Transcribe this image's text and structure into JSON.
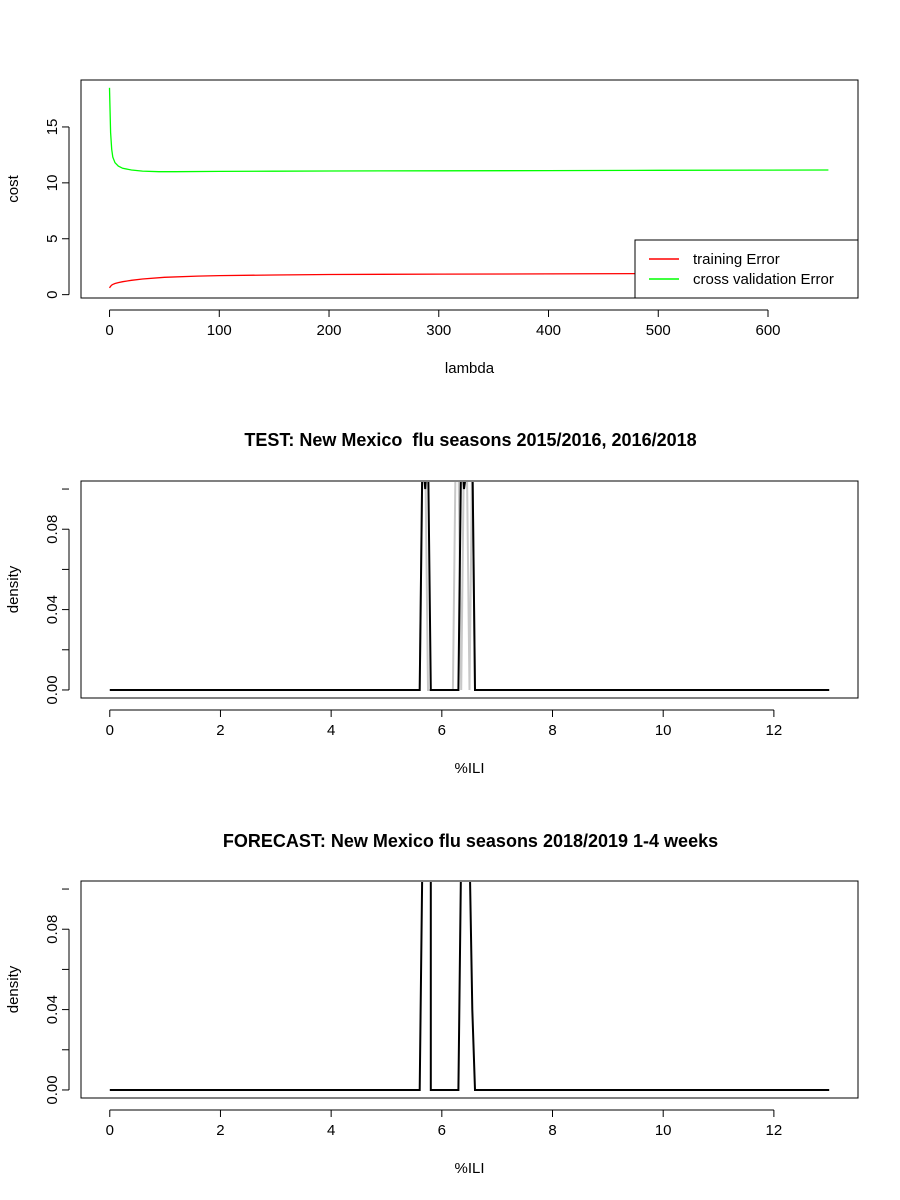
{
  "chart_data": [
    {
      "type": "line",
      "title": "",
      "xlabel": "lambda",
      "ylabel": "cost",
      "xlim": [
        -26,
        682
      ],
      "ylim": [
        -0.3,
        19.2
      ],
      "xticks": [
        0,
        100,
        200,
        300,
        400,
        500,
        600
      ],
      "yticks": [
        0,
        5,
        10,
        15
      ],
      "legend": {
        "placement": "bottom-right"
      },
      "series": [
        {
          "name": "training Error",
          "color": "#ff0000",
          "x": [
            0,
            1,
            2,
            3,
            5,
            8,
            12,
            20,
            30,
            50,
            80,
            100,
            150,
            200,
            300,
            400,
            500,
            600,
            655
          ],
          "y": [
            0.6,
            0.75,
            0.85,
            0.92,
            1.0,
            1.08,
            1.16,
            1.28,
            1.4,
            1.55,
            1.66,
            1.7,
            1.76,
            1.8,
            1.84,
            1.86,
            1.88,
            1.89,
            1.9
          ]
        },
        {
          "name": "cross validation Error",
          "color": "#00ff00",
          "x": [
            0,
            1,
            2,
            3,
            5,
            8,
            12,
            20,
            30,
            45,
            60,
            100,
            150,
            200,
            300,
            400,
            500,
            600,
            655
          ],
          "y": [
            18.5,
            14.5,
            13.0,
            12.3,
            11.8,
            11.5,
            11.3,
            11.15,
            11.05,
            11.0,
            11.0,
            11.02,
            11.04,
            11.06,
            11.08,
            11.1,
            11.12,
            11.14,
            11.15
          ]
        }
      ]
    },
    {
      "type": "line",
      "title": "TEST: New Mexico  flu seasons 2015/2016, 2016/2018",
      "xlabel": "%ILI",
      "ylabel": "density",
      "xlim": [
        -0.52,
        13.52
      ],
      "ylim": [
        -0.004,
        0.104
      ],
      "xticks": [
        0,
        2,
        4,
        6,
        8,
        10,
        12
      ],
      "yticks": [
        0.0,
        0.04,
        0.08
      ],
      "yticklabels": [
        "0.00",
        "0.04",
        "0.08"
      ],
      "series": [
        {
          "color": "#c8c8c8",
          "x": [
            0,
            5.6,
            5.65,
            5.7,
            5.75,
            5.8,
            6.2,
            6.25,
            6.3,
            6.35,
            6.4,
            6.45,
            6.5,
            6.55,
            6.6,
            13
          ],
          "y": [
            0,
            0,
            0.12,
            0.12,
            0,
            0,
            0,
            0.12,
            0.12,
            0,
            0.12,
            0.12,
            0,
            0.12,
            0,
            0
          ]
        },
        {
          "color": "#000000",
          "x": [
            0,
            5.6,
            5.65,
            5.7,
            5.75,
            5.8,
            6.3,
            6.35,
            6.4,
            6.5,
            6.55,
            6.6,
            13
          ],
          "y": [
            0,
            0,
            0.12,
            0.1,
            0.12,
            0,
            0,
            0.12,
            0.1,
            0.12,
            0.12,
            0,
            0
          ]
        }
      ]
    },
    {
      "type": "line",
      "title": "FORECAST: New Mexico flu seasons 2018/2019 1-4 weeks",
      "xlabel": "%ILI",
      "ylabel": "density",
      "xlim": [
        -0.52,
        13.52
      ],
      "ylim": [
        -0.004,
        0.104
      ],
      "xticks": [
        0,
        2,
        4,
        6,
        8,
        10,
        12
      ],
      "yticks": [
        0.0,
        0.04,
        0.08
      ],
      "yticklabels": [
        "0.00",
        "0.04",
        "0.08"
      ],
      "series": [
        {
          "color": "#000000",
          "x": [
            0,
            5.6,
            5.65,
            5.8,
            5.8,
            6.3,
            6.35,
            6.45,
            6.5,
            6.55,
            6.6,
            13
          ],
          "y": [
            0,
            0,
            0.12,
            0.12,
            0,
            0,
            0.12,
            0.12,
            0.12,
            0.04,
            0,
            0
          ]
        }
      ]
    }
  ]
}
